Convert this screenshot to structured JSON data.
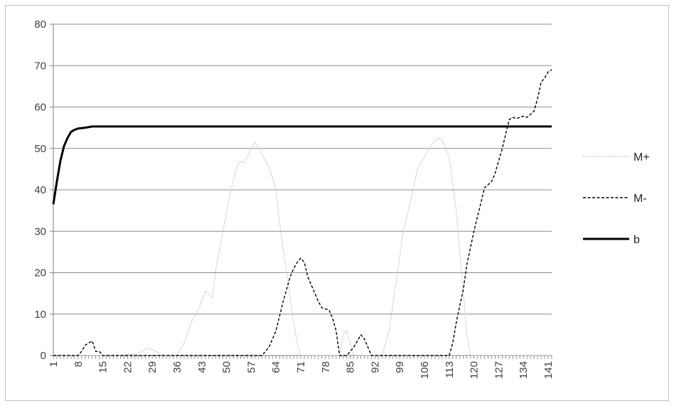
{
  "chart_data": {
    "type": "line",
    "title": "",
    "xlabel": "",
    "ylabel": "",
    "xlim": [
      1,
      142
    ],
    "ylim": [
      0,
      80
    ],
    "y_ticks": [
      0,
      10,
      20,
      30,
      40,
      50,
      60,
      70,
      80
    ],
    "x_ticks": [
      1,
      8,
      15,
      22,
      29,
      36,
      43,
      50,
      57,
      64,
      71,
      78,
      85,
      92,
      99,
      106,
      113,
      120,
      127,
      134,
      141
    ],
    "grid": "horizontal",
    "legend_position": "right",
    "series": [
      {
        "name": "M+",
        "style": "dotted",
        "color": "#bfbfbf",
        "points": [
          [
            1,
            0
          ],
          [
            20,
            0
          ],
          [
            22,
            0.3
          ],
          [
            25,
            0.5
          ],
          [
            27,
            1.5
          ],
          [
            28,
            1.8
          ],
          [
            30,
            1
          ],
          [
            32,
            0
          ],
          [
            36,
            0
          ],
          [
            38,
            3
          ],
          [
            40,
            8
          ],
          [
            42,
            11
          ],
          [
            44,
            15.5
          ],
          [
            46,
            14
          ],
          [
            47,
            21
          ],
          [
            49,
            30
          ],
          [
            51,
            39
          ],
          [
            53,
            46
          ],
          [
            54,
            47
          ],
          [
            55,
            46.5
          ],
          [
            57,
            50
          ],
          [
            58,
            51.5
          ],
          [
            59,
            50.5
          ],
          [
            61,
            47
          ],
          [
            62,
            45.5
          ],
          [
            64,
            40
          ],
          [
            65,
            32
          ],
          [
            67,
            20
          ],
          [
            69,
            8
          ],
          [
            70,
            3
          ],
          [
            71,
            0
          ],
          [
            82,
            0
          ],
          [
            83,
            5
          ],
          [
            84,
            6
          ],
          [
            85,
            3
          ],
          [
            86,
            0
          ],
          [
            94,
            0
          ],
          [
            96,
            6
          ],
          [
            98,
            18
          ],
          [
            100,
            30
          ],
          [
            102,
            37
          ],
          [
            104,
            45
          ],
          [
            106,
            48
          ],
          [
            108,
            51
          ],
          [
            110,
            52.5
          ],
          [
            111,
            52
          ],
          [
            113,
            48
          ],
          [
            115,
            35
          ],
          [
            117,
            15
          ],
          [
            118,
            5
          ],
          [
            119,
            0
          ],
          [
            142,
            0
          ]
        ]
      },
      {
        "name": "M-",
        "style": "dashed",
        "color": "#000000",
        "points": [
          [
            1,
            0
          ],
          [
            8,
            0
          ],
          [
            9,
            1
          ],
          [
            10,
            2.5
          ],
          [
            11,
            3
          ],
          [
            12,
            3.5
          ],
          [
            13,
            1
          ],
          [
            14,
            1
          ],
          [
            15,
            0
          ],
          [
            60,
            0
          ],
          [
            62,
            2
          ],
          [
            64,
            6
          ],
          [
            66,
            13
          ],
          [
            68,
            19
          ],
          [
            69,
            21
          ],
          [
            70,
            22.5
          ],
          [
            71,
            23.5
          ],
          [
            72,
            22.5
          ],
          [
            73,
            19
          ],
          [
            75,
            15
          ],
          [
            76,
            13
          ],
          [
            77,
            11.5
          ],
          [
            79,
            11
          ],
          [
            80,
            9
          ],
          [
            81,
            6
          ],
          [
            82,
            0
          ],
          [
            84,
            0
          ],
          [
            86,
            2
          ],
          [
            87,
            3.5
          ],
          [
            88,
            5
          ],
          [
            89,
            4
          ],
          [
            90,
            2
          ],
          [
            91,
            0
          ],
          [
            113,
            0
          ],
          [
            114,
            3
          ],
          [
            115,
            8
          ],
          [
            117,
            16
          ],
          [
            118,
            22
          ],
          [
            120,
            30
          ],
          [
            122,
            37
          ],
          [
            123,
            40.5
          ],
          [
            125,
            42
          ],
          [
            126,
            44
          ],
          [
            127,
            47
          ],
          [
            128,
            50
          ],
          [
            130,
            57
          ],
          [
            131,
            57.5
          ],
          [
            132,
            57.2
          ],
          [
            133,
            57.5
          ],
          [
            134,
            57.8
          ],
          [
            135,
            57.5
          ],
          [
            137,
            59
          ],
          [
            138,
            62
          ],
          [
            139,
            66
          ],
          [
            140,
            67
          ],
          [
            141,
            68.5
          ],
          [
            142,
            69
          ]
        ]
      },
      {
        "name": "b",
        "style": "solid",
        "color": "#000000",
        "points": [
          [
            1,
            36.5
          ],
          [
            2,
            42
          ],
          [
            3,
            47
          ],
          [
            4,
            50.5
          ],
          [
            5,
            52.5
          ],
          [
            6,
            54
          ],
          [
            7,
            54.5
          ],
          [
            8,
            54.8
          ],
          [
            10,
            55
          ],
          [
            12,
            55.3
          ],
          [
            142,
            55.3
          ]
        ]
      }
    ]
  }
}
